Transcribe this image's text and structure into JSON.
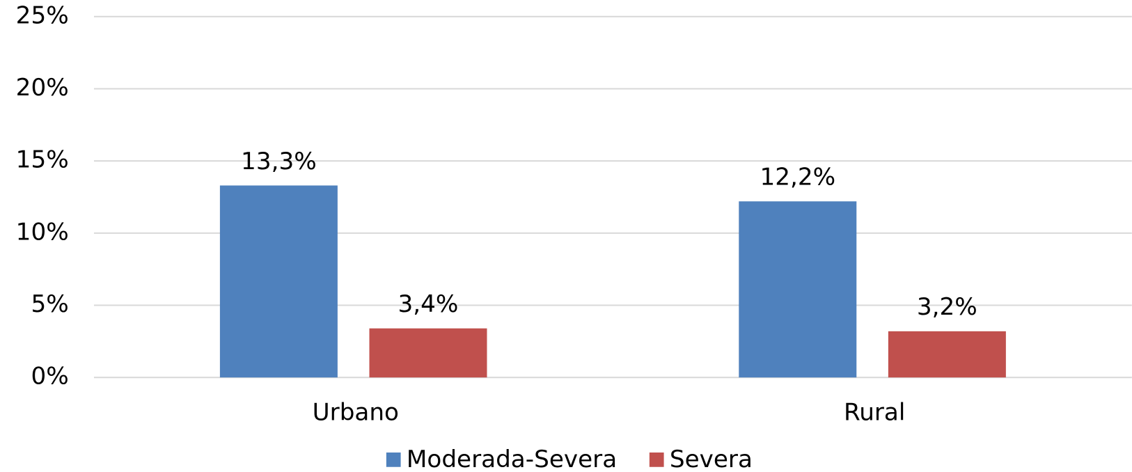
{
  "chart_data": {
    "type": "bar",
    "categories": [
      "Urbano",
      "Rural"
    ],
    "series": [
      {
        "name": "Moderada-Severa",
        "color": "#4f81bd",
        "values": [
          13.3,
          12.2
        ],
        "value_labels": [
          "13,3%",
          "12,2%"
        ]
      },
      {
        "name": "Severa",
        "color": "#c0504d",
        "values": [
          3.4,
          3.2
        ],
        "value_labels": [
          "3,4%",
          "3,2%"
        ]
      }
    ],
    "ylim": [
      0,
      25
    ],
    "yticks": [
      {
        "value": 0,
        "label": "0%"
      },
      {
        "value": 5,
        "label": "5%"
      },
      {
        "value": 10,
        "label": "10%"
      },
      {
        "value": 15,
        "label": "15%"
      },
      {
        "value": 20,
        "label": "20%"
      },
      {
        "value": 25,
        "label": "25%"
      }
    ],
    "grid": true,
    "legend": "bottom"
  }
}
